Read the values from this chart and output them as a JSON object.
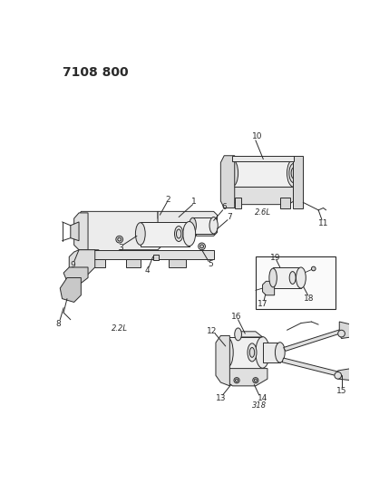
{
  "title": "7108 800",
  "bg_color": "#ffffff",
  "lc": "#2a2a2a",
  "figsize": [
    4.29,
    5.33
  ],
  "dpi": 100,
  "title_fs": 10,
  "lbl_fs": 6.5,
  "cap_fs": 6.0
}
